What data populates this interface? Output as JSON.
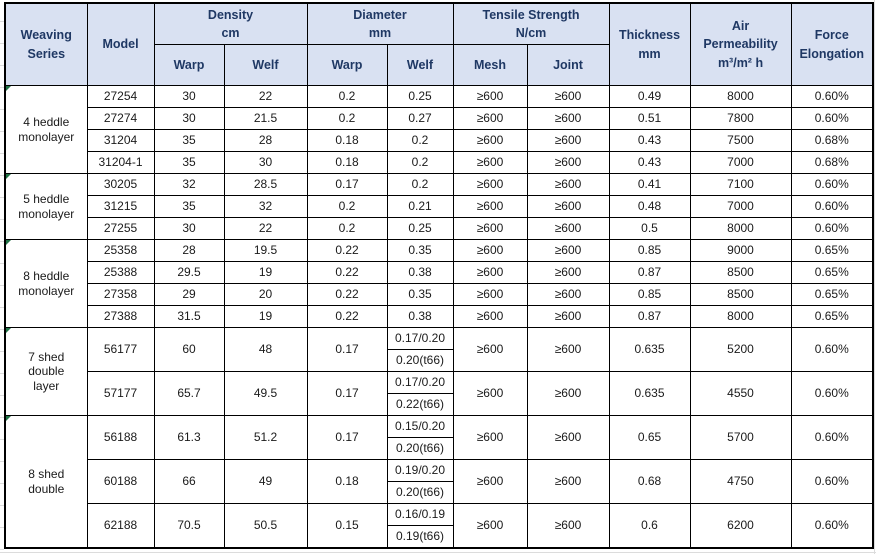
{
  "colors": {
    "header_fill": "#D9E1F2",
    "header_text": "#1F3864",
    "body_text": "#1A1A1A",
    "border": "#000000",
    "error_indicator_green": "#217346",
    "sheet_gridline": "#DCDCDC"
  },
  "header": {
    "weaving_series": "Weaving\nSeries",
    "model": "Model",
    "density_title": "Density\ncm",
    "diameter_title": "Diameter\nmm",
    "tensile_title": "Tensile Strength\nN/cm",
    "density_sub": [
      "Warp",
      "Welf"
    ],
    "diameter_sub": [
      "Warp",
      "Welf"
    ],
    "tensile_sub": [
      "Mesh",
      "Joint"
    ],
    "thickness": "Thickness\nmm",
    "air_permeability": "Air\nPermeability\nm³/m² h",
    "force_elongation": "Force\nElongation"
  },
  "groups": [
    {
      "series": "4 heddle\nmonolayer",
      "rows": [
        {
          "model": "27254",
          "density_warp": "30",
          "density_welf": "22",
          "diameter_warp": "0.2",
          "diameter_welf": "0.25",
          "mesh": "≥600",
          "joint": "≥600",
          "thickness": "0.49",
          "air_permeability": "8000",
          "force_elongation": "0.60%"
        },
        {
          "model": "27274",
          "density_warp": "30",
          "density_welf": "21.5",
          "diameter_warp": "0.2",
          "diameter_welf": "0.27",
          "mesh": "≥600",
          "joint": "≥600",
          "thickness": "0.51",
          "air_permeability": "7800",
          "force_elongation": "0.60%"
        },
        {
          "model": "31204",
          "density_warp": "35",
          "density_welf": "28",
          "diameter_warp": "0.18",
          "diameter_welf": "0.2",
          "mesh": "≥600",
          "joint": "≥600",
          "thickness": "0.43",
          "air_permeability": "7500",
          "force_elongation": "0.68%"
        },
        {
          "model": "31204-1",
          "density_warp": "35",
          "density_welf": "30",
          "diameter_warp": "0.18",
          "diameter_welf": "0.2",
          "mesh": "≥600",
          "joint": "≥600",
          "thickness": "0.43",
          "air_permeability": "7000",
          "force_elongation": "0.68%"
        }
      ]
    },
    {
      "series": "5 heddle\nmonolayer",
      "rows": [
        {
          "model": "30205",
          "density_warp": "32",
          "density_welf": "28.5",
          "diameter_warp": "0.17",
          "diameter_welf": "0.2",
          "mesh": "≥600",
          "joint": "≥600",
          "thickness": "0.41",
          "air_permeability": "7100",
          "force_elongation": "0.60%"
        },
        {
          "model": "31215",
          "density_warp": "35",
          "density_welf": "32",
          "diameter_warp": "0.2",
          "diameter_welf": "0.21",
          "mesh": "≥600",
          "joint": "≥600",
          "thickness": "0.48",
          "air_permeability": "7000",
          "force_elongation": "0.60%"
        },
        {
          "model": "27255",
          "density_warp": "30",
          "density_welf": "22",
          "diameter_warp": "0.2",
          "diameter_welf": "0.25",
          "mesh": "≥600",
          "joint": "≥600",
          "thickness": "0.5",
          "air_permeability": "8000",
          "force_elongation": "0.60%"
        }
      ]
    },
    {
      "series": "8 heddle\nmonolayer",
      "rows": [
        {
          "model": "25358",
          "density_warp": "28",
          "density_welf": "19.5",
          "diameter_warp": "0.22",
          "diameter_welf": "0.35",
          "mesh": "≥600",
          "joint": "≥600",
          "thickness": "0.85",
          "air_permeability": "9000",
          "force_elongation": "0.65%"
        },
        {
          "model": "25388",
          "density_warp": "29.5",
          "density_welf": "19",
          "diameter_warp": "0.22",
          "diameter_welf": "0.38",
          "mesh": "≥600",
          "joint": "≥600",
          "thickness": "0.87",
          "air_permeability": "8500",
          "force_elongation": "0.65%"
        },
        {
          "model": "27358",
          "density_warp": "29",
          "density_welf": "20",
          "diameter_warp": "0.22",
          "diameter_welf": "0.35",
          "mesh": "≥600",
          "joint": "≥600",
          "thickness": "0.85",
          "air_permeability": "8500",
          "force_elongation": "0.65%"
        },
        {
          "model": "27388",
          "density_warp": "31.5",
          "density_welf": "19",
          "diameter_warp": "0.22",
          "diameter_welf": "0.38",
          "mesh": "≥600",
          "joint": "≥600",
          "thickness": "0.87",
          "air_permeability": "8000",
          "force_elongation": "0.65%"
        }
      ]
    },
    {
      "series": "7 shed\ndouble\nlayer",
      "rows": [
        {
          "model": "56177",
          "density_warp": "60",
          "density_welf": "48",
          "diameter_warp": "0.17",
          "diameter_welf": [
            "0.17/0.20",
            "0.20(t66)"
          ],
          "mesh": "≥600",
          "joint": "≥600",
          "thickness": "0.635",
          "air_permeability": "5200",
          "force_elongation": "0.60%"
        },
        {
          "model": "57177",
          "density_warp": "65.7",
          "density_welf": "49.5",
          "diameter_warp": "0.17",
          "diameter_welf": [
            "0.17/0.20",
            "0.22(t66)"
          ],
          "mesh": "≥600",
          "joint": "≥600",
          "thickness": "0.635",
          "air_permeability": "4550",
          "force_elongation": "0.60%"
        }
      ]
    },
    {
      "series": "8 shed\ndouble",
      "rows": [
        {
          "model": "56188",
          "density_warp": "61.3",
          "density_welf": "51.2",
          "diameter_warp": "0.17",
          "diameter_welf": [
            "0.15/0.20",
            "0.20(t66)"
          ],
          "mesh": "≥600",
          "joint": "≥600",
          "thickness": "0.65",
          "air_permeability": "5700",
          "force_elongation": "0.60%"
        },
        {
          "model": "60188",
          "density_warp": "66",
          "density_welf": "49",
          "diameter_warp": "0.18",
          "diameter_welf": [
            "0.19/0.20",
            "0.20(t66)"
          ],
          "mesh": "≥600",
          "joint": "≥600",
          "thickness": "0.68",
          "air_permeability": "4750",
          "force_elongation": "0.60%"
        },
        {
          "model": "62188",
          "density_warp": "70.5",
          "density_welf": "50.5",
          "diameter_warp": "0.15",
          "diameter_welf": [
            "0.16/0.19",
            "0.19(t66)"
          ],
          "mesh": "≥600",
          "joint": "≥600",
          "thickness": "0.6",
          "air_permeability": "6200",
          "force_elongation": "0.60%"
        }
      ]
    }
  ]
}
